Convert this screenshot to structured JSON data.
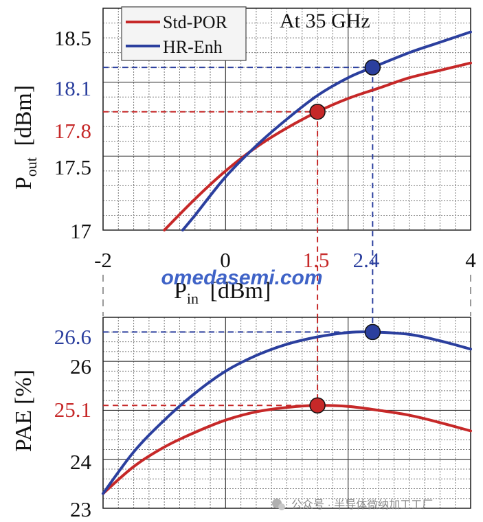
{
  "colors": {
    "std_por": "#c62828",
    "hr_enh": "#2b3f9e",
    "grid_major": "#3a3a3a",
    "grid_minor": "#7a7a7a",
    "watermark": "#3f63c7",
    "footer": "#8a8a8a"
  },
  "chart_data": [
    {
      "type": "line",
      "title": "At 35 GHz",
      "xlabel": "P_in [dBm]",
      "ylabel": "P_out [dBm]",
      "xlim": [
        -2,
        4
      ],
      "ylim": [
        17,
        18.5
      ],
      "x_ticks": [
        -2,
        0,
        4
      ],
      "y_ticks": [
        17,
        17.5,
        18.5
      ],
      "grid": true,
      "legend": "top-left",
      "series": [
        {
          "name": "Std-POR",
          "color": "#c62828",
          "x": [
            -1.0,
            -0.5,
            0.0,
            0.5,
            1.0,
            1.5,
            2.0,
            2.5,
            3.0,
            3.5,
            4.0
          ],
          "values": [
            17.0,
            17.21,
            17.4,
            17.56,
            17.69,
            17.8,
            17.89,
            17.96,
            18.03,
            18.08,
            18.13
          ]
        },
        {
          "name": "HR-Enh",
          "color": "#2b3f9e",
          "x": [
            -0.7,
            -0.5,
            0.0,
            0.5,
            1.0,
            1.5,
            2.0,
            2.4,
            3.0,
            3.5,
            4.0
          ],
          "values": [
            17.0,
            17.1,
            17.36,
            17.57,
            17.75,
            17.91,
            18.03,
            18.1,
            18.2,
            18.27,
            18.34
          ]
        }
      ],
      "markers": [
        {
          "series": "Std-POR",
          "x": 1.5,
          "y": 17.8,
          "x_label": "1.5",
          "y_label": "17.8",
          "color": "#c62828"
        },
        {
          "series": "HR-Enh",
          "x": 2.4,
          "y": 18.1,
          "x_label": "2.4",
          "y_label": "18.1",
          "color": "#2b3f9e"
        }
      ]
    },
    {
      "type": "line",
      "title": "",
      "xlabel": "P_in [dBm]",
      "ylabel": "PAE [%]",
      "xlim": [
        -2,
        4
      ],
      "ylim": [
        23,
        26.9
      ],
      "y_ticks": [
        23,
        24,
        26
      ],
      "grid": true,
      "series": [
        {
          "name": "Std-POR",
          "color": "#c62828",
          "x": [
            -2.0,
            -1.5,
            -1.0,
            -0.5,
            0.0,
            0.5,
            1.0,
            1.5,
            2.0,
            2.5,
            3.0,
            3.5,
            4.0
          ],
          "values": [
            23.3,
            23.85,
            24.25,
            24.55,
            24.8,
            24.97,
            25.06,
            25.1,
            25.08,
            25.0,
            24.9,
            24.75,
            24.58
          ]
        },
        {
          "name": "HR-Enh",
          "color": "#2b3f9e",
          "x": [
            -2.0,
            -1.5,
            -1.0,
            -0.5,
            0.0,
            0.5,
            1.0,
            1.5,
            2.0,
            2.4,
            3.0,
            3.5,
            4.0
          ],
          "values": [
            23.3,
            24.15,
            24.8,
            25.35,
            25.8,
            26.12,
            26.35,
            26.5,
            26.59,
            26.6,
            26.55,
            26.42,
            26.25
          ]
        }
      ],
      "markers": [
        {
          "series": "Std-POR",
          "x": 1.5,
          "y": 25.1,
          "y_label": "25.1",
          "color": "#c62828"
        },
        {
          "series": "HR-Enh",
          "x": 2.4,
          "y": 26.6,
          "y_label": "26.6",
          "color": "#2b3f9e"
        }
      ]
    }
  ],
  "labels": {
    "title": "At 35 GHz",
    "legend_std": "Std-POR",
    "legend_hr": "HR-Enh",
    "pout_main": "P",
    "pout_sub": "out",
    "pout_unit": "[dBm]",
    "pin_main": "P",
    "pin_sub": "in",
    "pin_unit": "[dBm]",
    "pae_label": "PAE",
    "pae_unit": "[%]",
    "x_tick_m2": "-2",
    "x_tick_0": "0",
    "x_tick_15": "1.5",
    "x_tick_24": "2.4",
    "x_tick_4": "4",
    "y_tick_185": "18.5",
    "y_tick_181": "18.1",
    "y_tick_178": "17.8",
    "y_tick_175": "17.5",
    "y_tick_17": "17",
    "y_tick_266": "26.6",
    "y_tick_26": "26",
    "y_tick_251": "25.1",
    "y_tick_24": "24",
    "y_tick_23": "23",
    "watermark": "omedasemi.com",
    "footer": "公众号 · 半导体微纳加工工厂"
  }
}
